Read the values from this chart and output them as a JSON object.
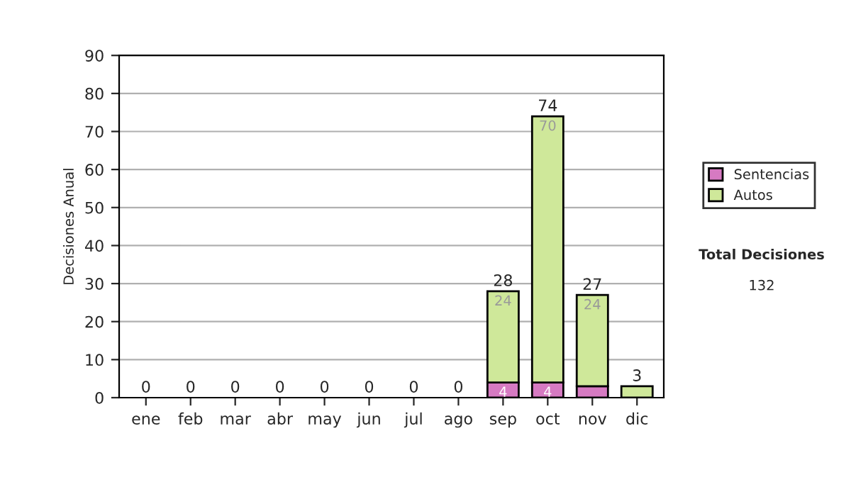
{
  "chart_data": {
    "type": "bar",
    "stacked": true,
    "ylabel": "Decisiones Anual",
    "categories": [
      "ene",
      "feb",
      "mar",
      "abr",
      "may",
      "jun",
      "jul",
      "ago",
      "sep",
      "oct",
      "nov",
      "dic"
    ],
    "series": [
      {
        "name": "Sentencias",
        "color": "#d67ac2",
        "values": [
          0,
          0,
          0,
          0,
          0,
          0,
          0,
          0,
          4,
          4,
          3,
          0
        ],
        "value_labels": [
          null,
          null,
          null,
          null,
          null,
          null,
          null,
          null,
          "4",
          "4",
          null,
          null
        ]
      },
      {
        "name": "Autos",
        "color": "#cfe89a",
        "values": [
          0,
          0,
          0,
          0,
          0,
          0,
          0,
          0,
          24,
          70,
          24,
          3
        ],
        "value_labels": [
          null,
          null,
          null,
          null,
          null,
          null,
          null,
          null,
          "24",
          "70",
          "24",
          null
        ]
      }
    ],
    "totals": [
      "0",
      "0",
      "0",
      "0",
      "0",
      "0",
      "0",
      "0",
      "28",
      "74",
      "27",
      "3"
    ],
    "ylim": [
      0,
      90
    ],
    "yticks": [
      0,
      10,
      20,
      30,
      40,
      50,
      60,
      70,
      80,
      90
    ],
    "grid": "y",
    "legend": "right",
    "annotations": [
      "Total Decisiones",
      "132"
    ]
  }
}
